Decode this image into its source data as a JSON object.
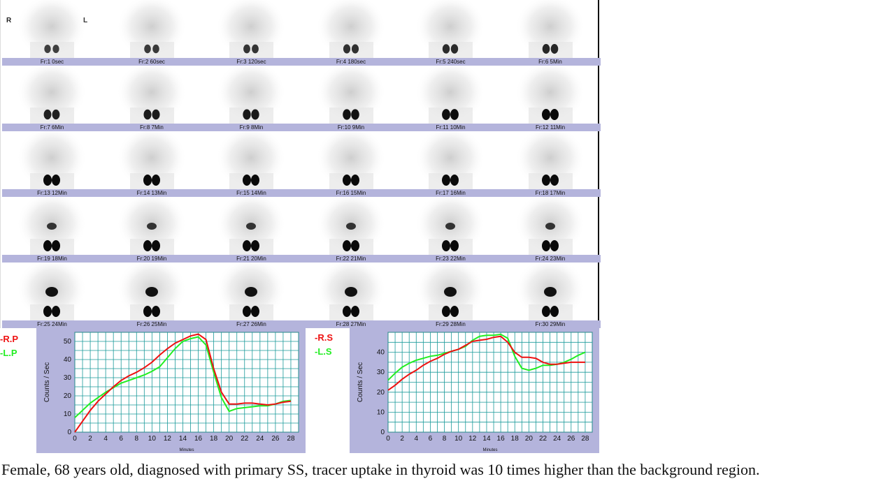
{
  "orientation": {
    "right": "R",
    "left": "L"
  },
  "frames": [
    "Fr:1 0sec",
    "Fr:2 60sec",
    "Fr:3 120sec",
    "Fr:4 180sec",
    "Fr:5 240sec",
    "Fr:6 5Min",
    "Fr:7 6Min",
    "Fr:8 7Min",
    "Fr:9 8Min",
    "Fr:10 9Min",
    "Fr:11 10Min",
    "Fr:12 11Min",
    "Fr:13 12Min",
    "Fr:14 13Min",
    "Fr:15 14Min",
    "Fr:16 15Min",
    "Fr:17 16Min",
    "Fr:18 17Min",
    "Fr:19 18Min",
    "Fr:20 19Min",
    "Fr:21 20Min",
    "Fr:22 21Min",
    "Fr:23 22Min",
    "Fr:24 23Min",
    "Fr:25 24Min",
    "Fr:26 25Min",
    "Fr:27 26Min",
    "Fr:28 27Min",
    "Fr:29 28Min",
    "Fr:30 29Min"
  ],
  "colors": {
    "red_series": "#ee1111",
    "green_series": "#22ee22",
    "grid": "#1a9a9a",
    "panel": "#b4b4dc"
  },
  "chart_data": [
    {
      "type": "line",
      "title": "",
      "xlabel": "Minutes",
      "ylabel": "Counts / Sec",
      "xlim": [
        0,
        29
      ],
      "ylim": [
        0,
        55
      ],
      "xticks": [
        0,
        2,
        4,
        6,
        8,
        10,
        12,
        14,
        16,
        18,
        20,
        22,
        24,
        26,
        28
      ],
      "yticks": [
        0,
        10,
        20,
        30,
        40,
        50
      ],
      "grid": true,
      "legend_position": "left",
      "x": [
        0,
        1,
        2,
        3,
        4,
        5,
        6,
        7,
        8,
        9,
        10,
        11,
        12,
        13,
        14,
        15,
        16,
        17,
        18,
        19,
        20,
        21,
        22,
        23,
        24,
        25,
        26,
        27,
        28
      ],
      "series": [
        {
          "name": "-R.P",
          "color": "#ee1111",
          "values": [
            0,
            6,
            12,
            17,
            21,
            25,
            28.5,
            31,
            33,
            35.5,
            38.5,
            42.5,
            46,
            49,
            51,
            53,
            54,
            51,
            35,
            22,
            15.5,
            15.5,
            16,
            16,
            15.5,
            15,
            15.5,
            16.5,
            17
          ]
        },
        {
          "name": "-L.P",
          "color": "#22ee22",
          "values": [
            8,
            12,
            16,
            19,
            22,
            24.5,
            27,
            28.5,
            30,
            31.5,
            33.5,
            36,
            41,
            46,
            50,
            51.5,
            52.5,
            48,
            33,
            19,
            11.5,
            13,
            13.5,
            14,
            14.5,
            14.5,
            15.5,
            17,
            17.5
          ]
        }
      ]
    },
    {
      "type": "line",
      "title": "",
      "xlabel": "Minutes",
      "ylabel": "Counts / Sec",
      "xlim": [
        0,
        29
      ],
      "ylim": [
        0,
        50
      ],
      "xticks": [
        0,
        2,
        4,
        6,
        8,
        10,
        12,
        14,
        16,
        18,
        20,
        22,
        24,
        26,
        28
      ],
      "yticks": [
        0,
        10,
        20,
        30,
        40
      ],
      "grid": true,
      "legend_position": "left",
      "x": [
        0,
        1,
        2,
        3,
        4,
        5,
        6,
        7,
        8,
        9,
        10,
        11,
        12,
        13,
        14,
        15,
        16,
        17,
        18,
        19,
        20,
        21,
        22,
        23,
        24,
        25,
        26,
        27,
        28
      ],
      "series": [
        {
          "name": "-R.S",
          "color": "#ee1111",
          "values": [
            21,
            23.5,
            26.5,
            29,
            31,
            33.5,
            35.5,
            37,
            39,
            40.5,
            41.5,
            43.5,
            45.5,
            46,
            46.5,
            47.5,
            48,
            45,
            40,
            37.5,
            37.5,
            37,
            35,
            34,
            34,
            34.5,
            35,
            35,
            35
          ]
        },
        {
          "name": "-L.S",
          "color": "#22ee22",
          "values": [
            26,
            29.5,
            32.5,
            34.5,
            36,
            37,
            38,
            38.5,
            39.5,
            40.5,
            41.5,
            43,
            46,
            48,
            48.5,
            48.5,
            49,
            47,
            38,
            32,
            31,
            32,
            33.5,
            33.5,
            34,
            35,
            36.5,
            38.5,
            40
          ]
        }
      ]
    }
  ],
  "caption": "Female, 68 years old, diagnosed with primary SS, tracer uptake in thyroid was 10 times higher than the background region."
}
